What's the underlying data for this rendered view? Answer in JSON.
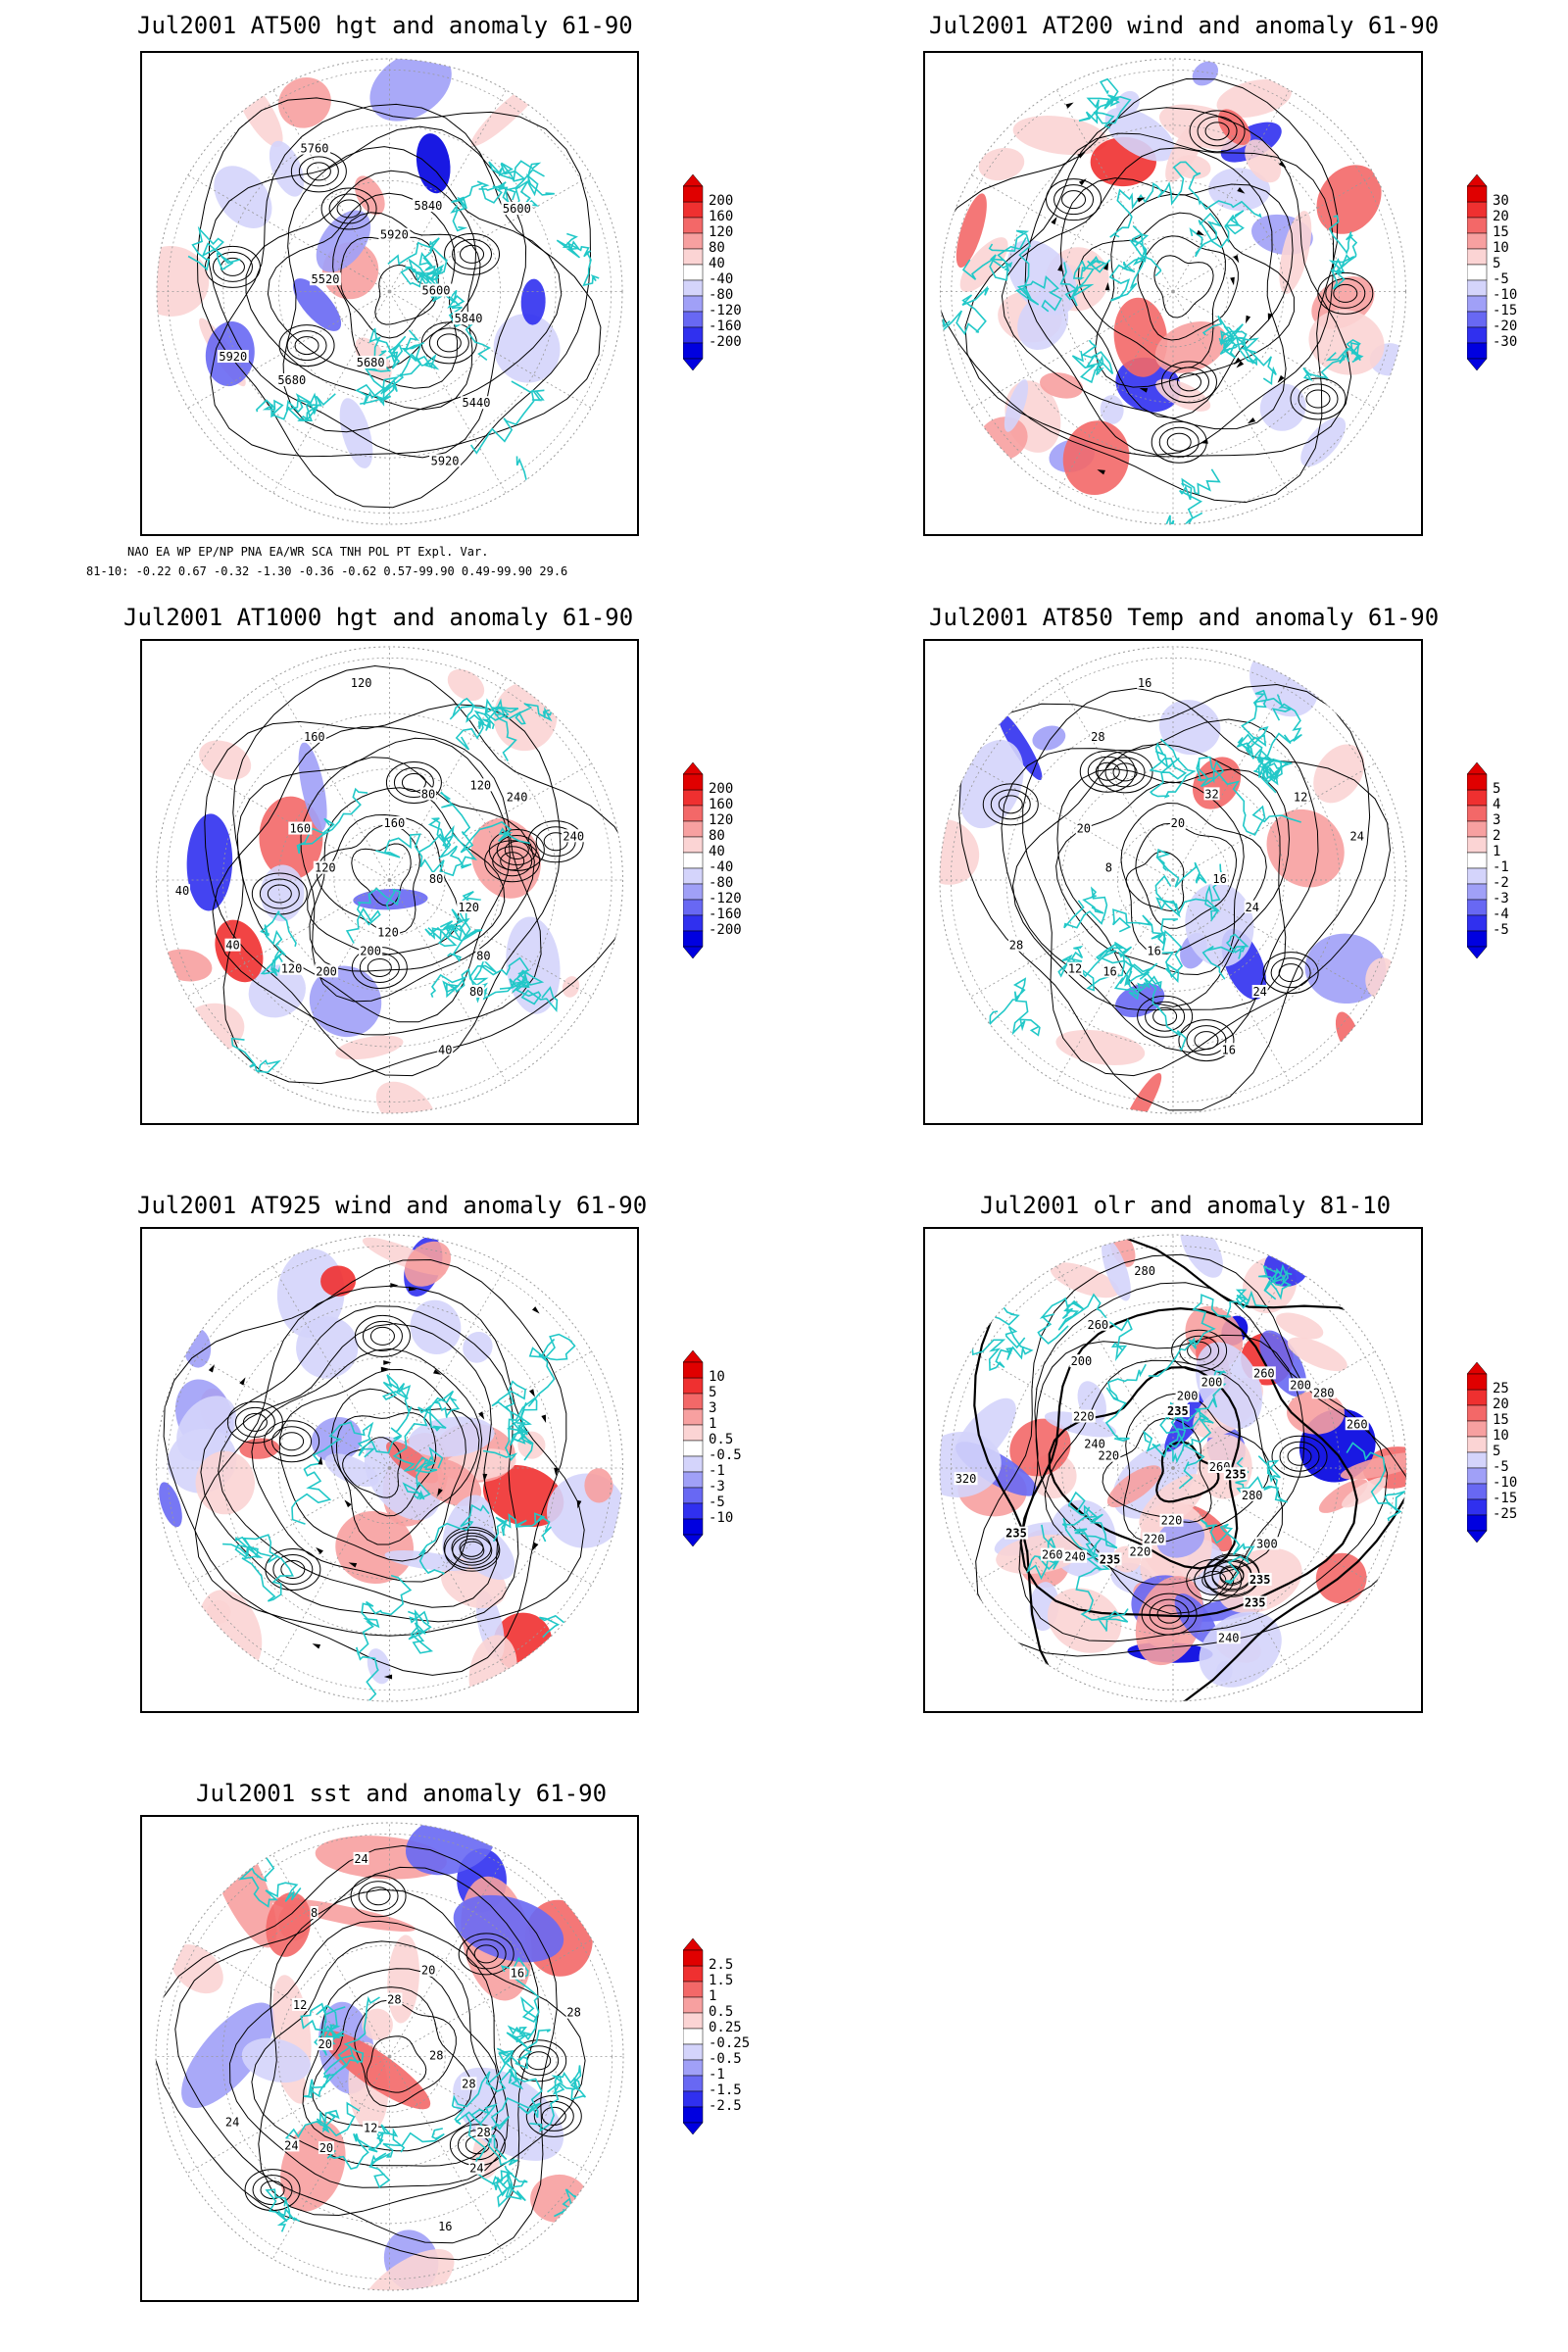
{
  "panels": [
    {
      "id": "p500",
      "title": "Jul2001 AT500 hgt and anomaly 61-90",
      "kind": "hgt",
      "colorbar": [
        "200",
        "160",
        "120",
        "80",
        "40",
        "-40",
        "-80",
        "-120",
        "-160",
        "-200"
      ],
      "contour_labels": [
        "5600",
        "5680",
        "5920",
        "5440",
        "5520",
        "5600",
        "5680",
        "5760",
        "5840",
        "5920",
        "5840",
        "5920"
      ]
    },
    {
      "id": "p200",
      "title": "Jul2001 AT200 wind and anomaly 61-90",
      "kind": "wind",
      "colorbar": [
        "30",
        "20",
        "15",
        "10",
        "5",
        "-5",
        "-10",
        "-15",
        "-20",
        "-30"
      ],
      "contour_labels": []
    },
    {
      "id": "p1000",
      "title": "Jul2001 AT1000 hgt and anomaly 61-90",
      "kind": "hgt",
      "colorbar": [
        "200",
        "160",
        "120",
        "80",
        "40",
        "-40",
        "-80",
        "-120",
        "-160",
        "-200"
      ],
      "contour_labels": [
        "80",
        "120",
        "160",
        "80",
        "120",
        "240",
        "200",
        "160",
        "120",
        "40",
        "80",
        "40",
        "160",
        "240",
        "200",
        "120",
        "80",
        "40",
        "120",
        "120"
      ]
    },
    {
      "id": "p850",
      "title": "Jul2001 AT850 Temp and anomaly 61-90",
      "kind": "temp",
      "colorbar": [
        "5",
        "4",
        "3",
        "2",
        "1",
        "-1",
        "-2",
        "-3",
        "-4",
        "-5"
      ],
      "contour_labels": [
        "16",
        "12",
        "20",
        "24",
        "8",
        "12",
        "16",
        "28",
        "24",
        "28",
        "32",
        "16",
        "20",
        "24",
        "16",
        "16"
      ]
    },
    {
      "id": "p925",
      "title": "Jul2001 AT925 wind and anomaly 61-90",
      "kind": "wind",
      "colorbar": [
        "10",
        "5",
        "3",
        "1",
        "0.5",
        "-0.5",
        "-1",
        "-3",
        "-5",
        "-10"
      ],
      "contour_labels": []
    },
    {
      "id": "polr",
      "title": "Jul2001 olr and anomaly 81-10",
      "kind": "olr",
      "colorbar": [
        "25",
        "20",
        "15",
        "10",
        "5",
        "-5",
        "-10",
        "-15",
        "-25"
      ],
      "contour_labels": [
        "260",
        "240",
        "235",
        "235",
        "220",
        "200",
        "220",
        "260",
        "280",
        "235",
        "200",
        "240",
        "220",
        "260",
        "235",
        "280",
        "300",
        "320",
        "260",
        "220",
        "200",
        "235",
        "260",
        "200",
        "235",
        "240",
        "280",
        "220"
      ]
    },
    {
      "id": "psst",
      "title": "Jul2001 sst and anomaly 61-90",
      "kind": "sst",
      "colorbar": [
        "2.5",
        "1.5",
        "1",
        "0.5",
        "0.25",
        "-0.25",
        "-0.5",
        "-1",
        "-1.5",
        "-2.5"
      ],
      "contour_labels": [
        "28",
        "24",
        "28",
        "24",
        "20",
        "16",
        "12",
        "8",
        "28",
        "24",
        "20",
        "16",
        "12",
        "28",
        "20",
        "24",
        "28"
      ]
    }
  ],
  "teleconnections": {
    "header": "     NAO    EA     WP   EP/NP  PNA   EA/WR   SCA     TNH    POL    PT    Expl. Var.",
    "row": "81-10:  -0.22   0.67  -0.32  -1.30  -0.36  -0.62  0.57-99.90  0.49-99.90   29.6"
  },
  "colors": {
    "warm": [
      "#e00000",
      "#ef3030",
      "#f36868",
      "#f7a0a0",
      "#fbd4d4"
    ],
    "cool": [
      "#d4d4fb",
      "#a0a0f7",
      "#6868f3",
      "#3030ef",
      "#0000e0"
    ],
    "coast": "#22c8c8",
    "grid": "#999999"
  }
}
